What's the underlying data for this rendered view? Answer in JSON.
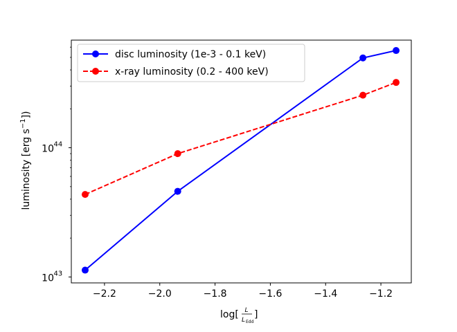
{
  "chart_data": {
    "type": "line",
    "title": "",
    "xlabel_prefix": "log[",
    "xlabel_num": "L",
    "xlabel_den_main": "L",
    "xlabel_den_sub": "Edd",
    "xlabel_suffix": "]",
    "ylabel_main": "luminosity [erg s",
    "ylabel_sup": "−1",
    "ylabel_suffix": "])",
    "xscale": "linear",
    "yscale": "log",
    "xlim": [
      -2.32,
      -1.09
    ],
    "ylim": [
      9e+42,
      6.8e+44
    ],
    "xticks": [
      -2.2,
      -2.0,
      -1.8,
      -1.6,
      -1.4,
      -1.2
    ],
    "xtick_labels": [
      "−2.2",
      "−2.0",
      "−1.8",
      "−1.6",
      "−1.4",
      "−1.2"
    ],
    "ytick_labels": [
      {
        "base": "10",
        "exp": "43",
        "value": 1e+43
      },
      {
        "base": "10",
        "exp": "44",
        "value": 1e+44
      }
    ],
    "legend_position": "upper-left",
    "series": [
      {
        "name": "disc luminosity (1e-3 - 0.1 keV)",
        "color": "#0000ff",
        "linestyle": "solid",
        "marker": "circle",
        "x": [
          -2.27,
          -1.935,
          -1.265,
          -1.145
        ],
        "y": [
          1.13e+43,
          4.6e+43,
          4.95e+44,
          5.65e+44
        ]
      },
      {
        "name": "x-ray luminosity (0.2 - 400 keV)",
        "color": "#ff0000",
        "linestyle": "dashed",
        "marker": "circle",
        "x": [
          -2.27,
          -1.935,
          -1.265,
          -1.145
        ],
        "y": [
          4.35e+43,
          9e+43,
          2.55e+44,
          3.2e+44
        ]
      }
    ]
  }
}
